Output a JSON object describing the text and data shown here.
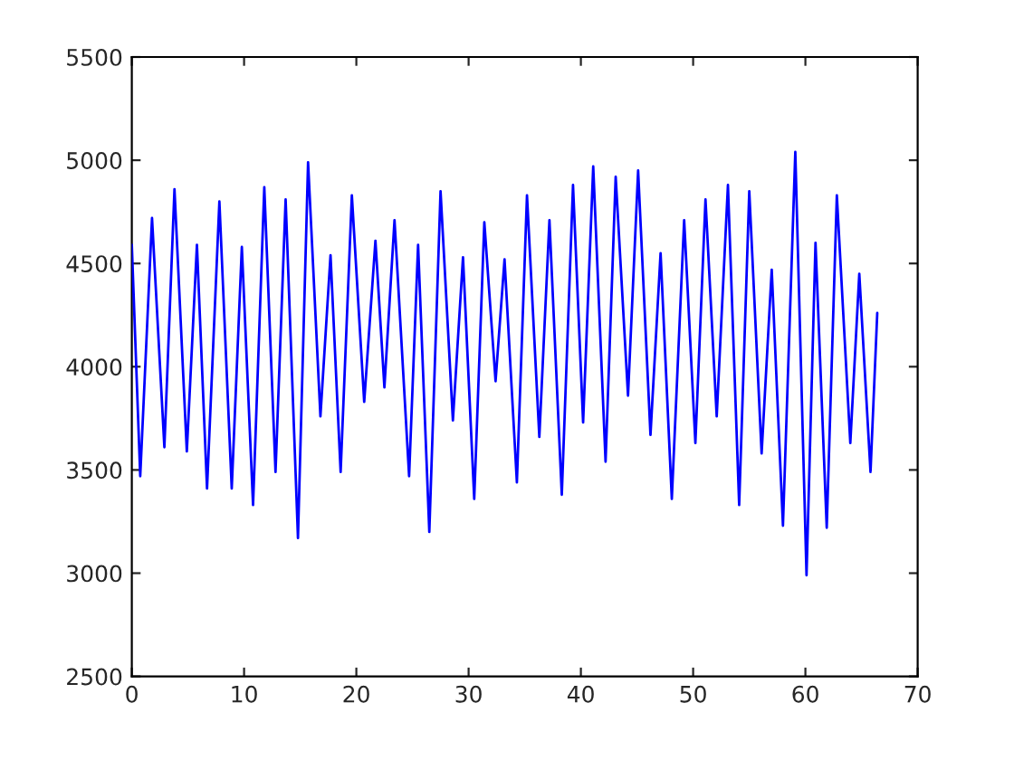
{
  "chart_data": {
    "type": "line",
    "xlim": [
      0,
      70
    ],
    "ylim": [
      2500,
      5500
    ],
    "xticks": [
      0,
      10,
      20,
      30,
      40,
      50,
      60,
      70
    ],
    "yticks": [
      2500,
      3000,
      3500,
      4000,
      4500,
      5000,
      5500
    ],
    "grid": false,
    "legend": false,
    "series": [
      {
        "color": "#0000ff",
        "x": [
          0,
          0.75,
          1.8,
          2.9,
          3.8,
          4.9,
          5.8,
          6.7,
          7.8,
          8.9,
          9.8,
          10.8,
          11.8,
          12.8,
          13.7,
          14.8,
          15.7,
          16.8,
          17.7,
          18.6,
          19.6,
          20.7,
          21.7,
          22.5,
          23.4,
          24.7,
          25.5,
          26.5,
          27.5,
          28.6,
          29.5,
          30.5,
          31.4,
          32.4,
          33.2,
          34.3,
          35.2,
          36.3,
          37.2,
          38.3,
          39.3,
          40.2,
          41.1,
          42.2,
          43.1,
          44.2,
          45.1,
          46.2,
          47.1,
          48.1,
          49.2,
          50.2,
          51.1,
          52.1,
          53.1,
          54.1,
          55.0,
          56.1,
          57.0,
          58.0,
          59.1,
          60.1,
          60.9,
          61.9,
          62.8,
          64.0,
          64.8,
          65.8,
          66.4
        ],
        "values": [
          4590,
          3470,
          4720,
          3610,
          4860,
          3590,
          4590,
          3410,
          4800,
          3410,
          4580,
          3330,
          4870,
          3490,
          4810,
          3170,
          4990,
          3760,
          4540,
          3490,
          4830,
          3830,
          4610,
          3900,
          4710,
          3470,
          4590,
          3200,
          4850,
          3740,
          4530,
          3360,
          4700,
          3930,
          4520,
          3440,
          4830,
          3660,
          4710,
          3380,
          4880,
          3730,
          4970,
          3540,
          4920,
          3860,
          4950,
          3670,
          4550,
          3360,
          4710,
          3630,
          4810,
          3760,
          4880,
          3330,
          4850,
          3580,
          4470,
          3230,
          5040,
          2990,
          4600,
          3220,
          4830,
          3630,
          4450,
          3490,
          4260
        ]
      }
    ]
  }
}
